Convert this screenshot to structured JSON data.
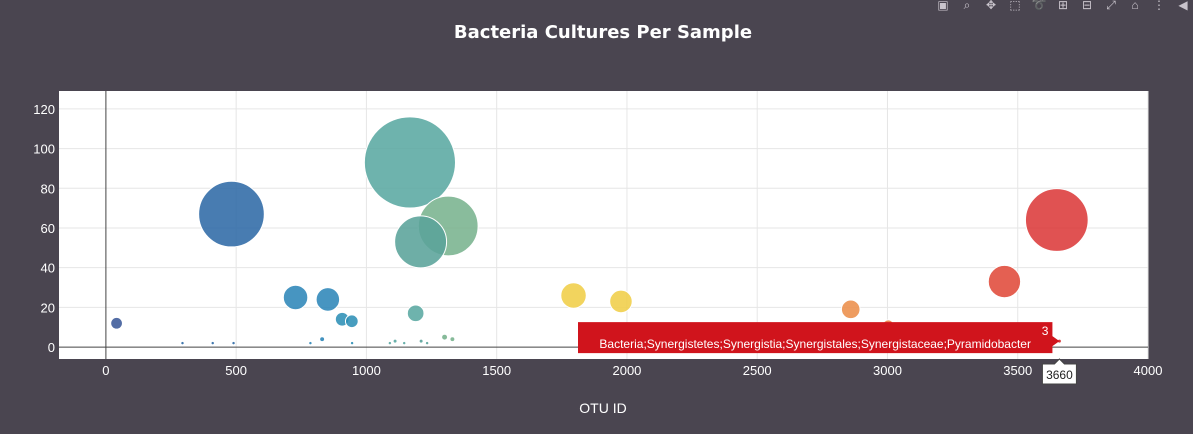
{
  "page": {
    "background": "#4a4550",
    "plot_background": "#ffffff"
  },
  "modebar": {
    "buttons": [
      {
        "name": "camera-icon",
        "glyph": "▣"
      },
      {
        "name": "zoom-icon",
        "glyph": "⌕"
      },
      {
        "name": "pan-icon",
        "glyph": "✥"
      },
      {
        "name": "box-select-icon",
        "glyph": "⬚"
      },
      {
        "name": "lasso-select-icon",
        "glyph": "➰"
      },
      {
        "name": "zoom-in-icon",
        "glyph": "⊞"
      },
      {
        "name": "zoom-out-icon",
        "glyph": "⊟"
      },
      {
        "name": "autoscale-icon",
        "glyph": "⤢"
      },
      {
        "name": "home-icon",
        "glyph": "⌂"
      },
      {
        "name": "spikelines-icon",
        "glyph": "⋮"
      },
      {
        "name": "hover-compare-icon",
        "glyph": "◀"
      }
    ]
  },
  "chart_data": {
    "type": "scatter",
    "variant": "bubble",
    "title": "Bacteria Cultures Per Sample",
    "xlabel": "OTU ID",
    "ylabel": "",
    "xlim": [
      -180,
      4000
    ],
    "ylim": [
      -6,
      129
    ],
    "xticks": [
      0,
      500,
      1000,
      1500,
      2000,
      2500,
      3000,
      3500,
      4000
    ],
    "yticks": [
      0,
      20,
      40,
      60,
      80,
      100,
      120
    ],
    "grid": true,
    "legend": "none",
    "colorscale": "Earth",
    "points": [
      {
        "x": 41,
        "y": 12,
        "color": "#3b5998"
      },
      {
        "x": 482,
        "y": 67,
        "color": "#2f6aa6"
      },
      {
        "x": 728,
        "y": 25,
        "color": "#2e86b8"
      },
      {
        "x": 852,
        "y": 24,
        "color": "#2e86b8"
      },
      {
        "x": 907,
        "y": 14,
        "color": "#2e8fb6"
      },
      {
        "x": 944,
        "y": 13,
        "color": "#2e8fb6"
      },
      {
        "x": 1167,
        "y": 93,
        "color": "#5aa8a2"
      },
      {
        "x": 1189,
        "y": 17,
        "color": "#5aa8a2"
      },
      {
        "x": 1208,
        "y": 53,
        "color": "#5aa39a"
      },
      {
        "x": 1314,
        "y": 61,
        "color": "#79b38e"
      },
      {
        "x": 1795,
        "y": 26,
        "color": "#f0ce48"
      },
      {
        "x": 1977,
        "y": 23,
        "color": "#f0ce48"
      },
      {
        "x": 2859,
        "y": 19,
        "color": "#ec8e4a"
      },
      {
        "x": 3003,
        "y": 11,
        "color": "#ec7a3e"
      },
      {
        "x": 3449,
        "y": 33,
        "color": "#e04a3a"
      },
      {
        "x": 3650,
        "y": 64,
        "color": "#dc3a3a"
      },
      {
        "x": 3660,
        "y": 3,
        "color": "#d32a2a"
      },
      {
        "x": 830,
        "y": 4,
        "color": "#2e86b8"
      },
      {
        "x": 1300,
        "y": 5,
        "color": "#79b38e"
      },
      {
        "x": 1330,
        "y": 4,
        "color": "#79b38e"
      },
      {
        "x": 1110,
        "y": 3,
        "color": "#5aa8a2"
      },
      {
        "x": 1210,
        "y": 3,
        "color": "#5aa39a"
      },
      {
        "x": 294,
        "y": 2,
        "color": "#2f6aa6"
      },
      {
        "x": 410,
        "y": 2,
        "color": "#2f6aa6"
      },
      {
        "x": 490,
        "y": 2,
        "color": "#2f6aa6"
      },
      {
        "x": 785,
        "y": 2,
        "color": "#2e86b8"
      },
      {
        "x": 945,
        "y": 2,
        "color": "#2e8fb6"
      },
      {
        "x": 1090,
        "y": 2,
        "color": "#5aa8a2"
      },
      {
        "x": 1145,
        "y": 2,
        "color": "#5aa8a2"
      },
      {
        "x": 1233,
        "y": 2,
        "color": "#5aa39a"
      }
    ],
    "hover": {
      "x": 3660,
      "x_label": "3660",
      "y_label": "3",
      "text": "Bacteria;Synergistetes;Synergistia;Synergistales;Synergistaceae;Pyramidobacter",
      "color": "#d0141c"
    }
  }
}
